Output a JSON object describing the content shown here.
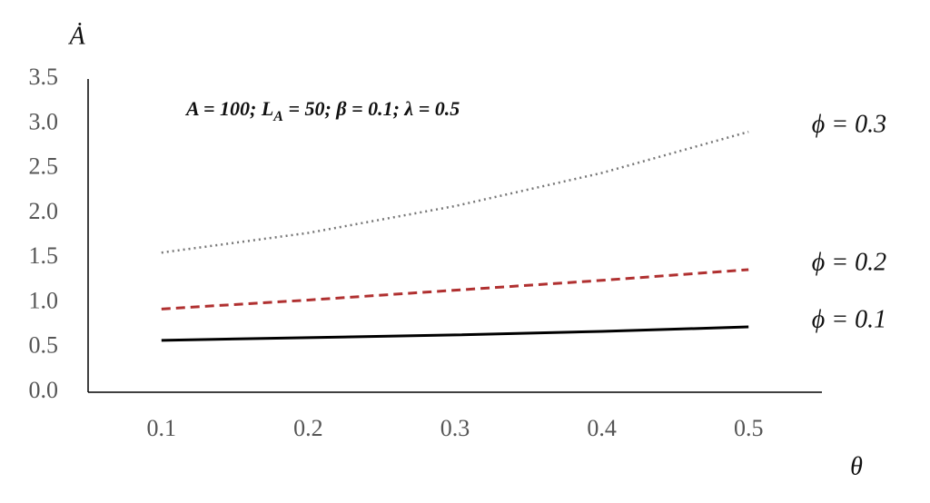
{
  "chart_data": {
    "type": "line",
    "y_label": "Ȧ",
    "x_label": "θ",
    "annotation": [
      "A = 100; L",
      "A",
      " = 50; β = 0.1; λ = 0.5"
    ],
    "x": [
      0.1,
      0.2,
      0.3,
      0.4,
      0.5
    ],
    "series": [
      {
        "name": "ϕ = 0.1",
        "color": "#000000",
        "style": "solid",
        "values": [
          0.58,
          0.61,
          0.64,
          0.68,
          0.73
        ]
      },
      {
        "name": "ϕ = 0.2",
        "color": "#b03030",
        "style": "dashed",
        "values": [
          0.93,
          1.03,
          1.14,
          1.25,
          1.37
        ]
      },
      {
        "name": "ϕ = 0.3",
        "color": "#777777",
        "style": "dotted",
        "values": [
          1.56,
          1.78,
          2.08,
          2.45,
          2.91
        ]
      }
    ],
    "xlim": [
      0.05,
      0.55
    ],
    "xticks": [
      0.1,
      0.2,
      0.3,
      0.4,
      0.5
    ],
    "ylim": [
      0,
      3.5
    ],
    "yticks": [
      {
        "value": 0,
        "label": "0.0"
      },
      0.5,
      {
        "value": 1,
        "label": "1.0"
      },
      1.5,
      {
        "value": 2,
        "label": "2.0"
      },
      2.5,
      {
        "value": 3,
        "label": "3.0"
      },
      3.5
    ],
    "grid": false
  }
}
